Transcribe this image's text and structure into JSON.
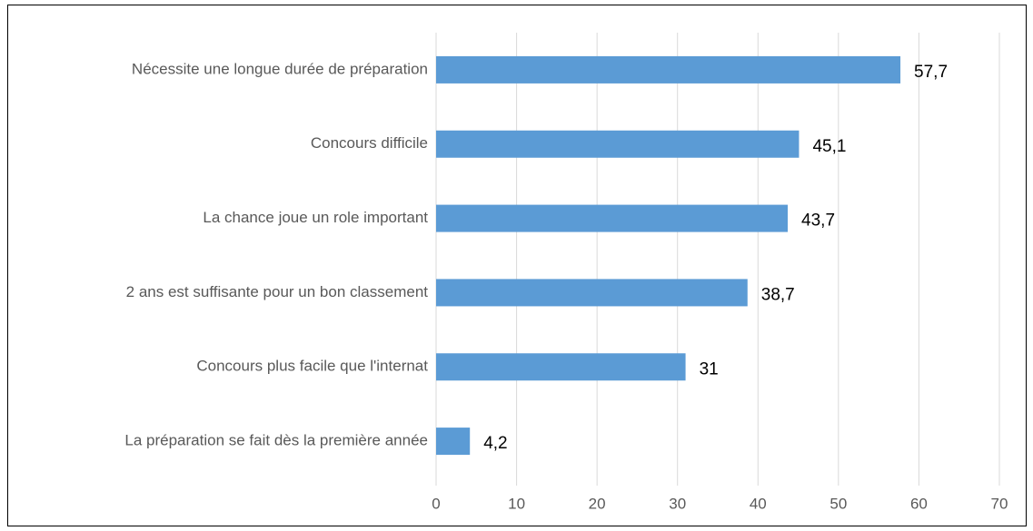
{
  "chart_data": {
    "type": "bar",
    "orientation": "horizontal",
    "categories": [
      "Nécessite une longue durée de préparation",
      "Concours difficile",
      "La chance joue un role important",
      "2 ans est suffisante pour un bon classement",
      "Concours plus facile que l'internat",
      "La préparation se fait dès la première année"
    ],
    "values": [
      57.7,
      45.1,
      43.7,
      38.7,
      31,
      4.2
    ],
    "value_labels": [
      "57,7",
      "45,1",
      "43,7",
      "38,7",
      "31",
      "4,2"
    ],
    "color": "#5b9bd5",
    "xlim": [
      0,
      70
    ],
    "xticks": [
      0,
      10,
      20,
      30,
      40,
      50,
      60,
      70
    ],
    "grid": true
  }
}
